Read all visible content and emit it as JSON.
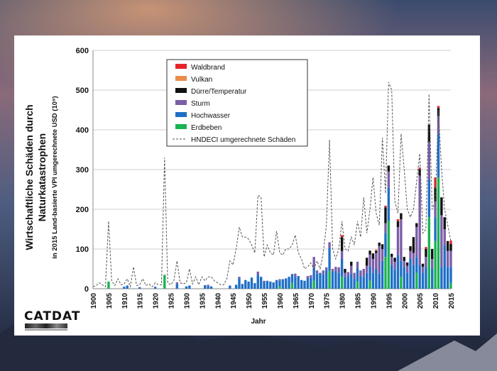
{
  "colors": {
    "waldbrand": "#e8242b",
    "vulkan": "#e98c4a",
    "duerre": "#111111",
    "sturm": "#7b5ea7",
    "hochwasser": "#1f6fc6",
    "erdbeben": "#1ab351",
    "hndeci": "#555555"
  },
  "logo": {
    "text": "CATDAT"
  },
  "chart_data": {
    "type": "bar",
    "stacked": true,
    "title": "Wirtschaftliche Schäden durch Naturkatastrophen",
    "subtitle": "in 2015 Land-basierte VPI umgerechnete USD (10⁹)",
    "xlabel": "Jahr",
    "ylabel": "",
    "ylim": [
      0,
      600
    ],
    "y_ticks": [
      "0",
      "100",
      "200",
      "300",
      "400",
      "500",
      "600"
    ],
    "x_ticks": [
      "1900",
      "1905",
      "1910",
      "1915",
      "1920",
      "1925",
      "1930",
      "1935",
      "1940",
      "1945",
      "1950",
      "1955",
      "1960",
      "1965",
      "1970",
      "1975",
      "1980",
      "1985",
      "1990",
      "1995",
      "2000",
      "2005",
      "2010",
      "2015"
    ],
    "grid": true,
    "legend_position": "top-center",
    "legend": [
      {
        "key": "waldbrand",
        "label": "Waldbrand"
      },
      {
        "key": "vulkan",
        "label": "Vulkan"
      },
      {
        "key": "duerre",
        "label": "Dürre/Temperatur"
      },
      {
        "key": "sturm",
        "label": "Sturm"
      },
      {
        "key": "hochwasser",
        "label": "Hochwasser"
      },
      {
        "key": "erdbeben",
        "label": "Erdbeben"
      },
      {
        "key": "hndeci",
        "label": "HNDECI umgerechnete Schäden"
      }
    ],
    "x_start": 1900,
    "x_end": 2015,
    "bars": [
      {
        "year": 1905,
        "erdbeben": 18
      },
      {
        "year": 1910,
        "hochwasser": 5
      },
      {
        "year": 1911,
        "hochwasser": 8
      },
      {
        "year": 1915,
        "hochwasser": 4
      },
      {
        "year": 1920,
        "hochwasser": 5
      },
      {
        "year": 1923,
        "erdbeben": 35
      },
      {
        "year": 1927,
        "hochwasser": 12,
        "sturm": 4
      },
      {
        "year": 1930,
        "hochwasser": 6
      },
      {
        "year": 1931,
        "hochwasser": 8
      },
      {
        "year": 1936,
        "hochwasser": 9
      },
      {
        "year": 1937,
        "hochwasser": 6,
        "sturm": 4
      },
      {
        "year": 1938,
        "hochwasser": 6
      },
      {
        "year": 1944,
        "hochwasser": 8
      },
      {
        "year": 1946,
        "hochwasser": 10
      },
      {
        "year": 1947,
        "hochwasser": 25,
        "sturm": 5
      },
      {
        "year": 1948,
        "hochwasser": 12
      },
      {
        "year": 1949,
        "hochwasser": 22
      },
      {
        "year": 1950,
        "hochwasser": 18
      },
      {
        "year": 1951,
        "hochwasser": 28
      },
      {
        "year": 1952,
        "hochwasser": 14
      },
      {
        "year": 1953,
        "hochwasser": 35,
        "sturm": 8
      },
      {
        "year": 1954,
        "hochwasser": 30
      },
      {
        "year": 1955,
        "hochwasser": 16,
        "sturm": 4
      },
      {
        "year": 1956,
        "hochwasser": 20
      },
      {
        "year": 1957,
        "hochwasser": 18
      },
      {
        "year": 1958,
        "hochwasser": 16
      },
      {
        "year": 1959,
        "hochwasser": 22
      },
      {
        "year": 1960,
        "hochwasser": 14,
        "erdbeben": 6,
        "sturm": 4
      },
      {
        "year": 1961,
        "hochwasser": 24
      },
      {
        "year": 1962,
        "hochwasser": 26
      },
      {
        "year": 1963,
        "hochwasser": 30
      },
      {
        "year": 1964,
        "erdbeben": 15,
        "hochwasser": 22
      },
      {
        "year": 1965,
        "hochwasser": 30,
        "sturm": 8
      },
      {
        "year": 1966,
        "hochwasser": 32
      },
      {
        "year": 1967,
        "hochwasser": 22
      },
      {
        "year": 1968,
        "hochwasser": 20
      },
      {
        "year": 1969,
        "hochwasser": 26,
        "sturm": 6
      },
      {
        "year": 1970,
        "hochwasser": 28,
        "sturm": 6
      },
      {
        "year": 1971,
        "hochwasser": 32,
        "erdbeben": 20,
        "sturm": 28
      },
      {
        "year": 1972,
        "hochwasser": 38,
        "sturm": 8
      },
      {
        "year": 1973,
        "hochwasser": 40
      },
      {
        "year": 1974,
        "hochwasser": 36,
        "sturm": 10
      },
      {
        "year": 1975,
        "hochwasser": 48,
        "sturm": 6
      },
      {
        "year": 1976,
        "erdbeben": 45,
        "hochwasser": 58,
        "sturm": 14
      },
      {
        "year": 1977,
        "hochwasser": 42,
        "sturm": 8
      },
      {
        "year": 1978,
        "hochwasser": 45,
        "sturm": 10
      },
      {
        "year": 1979,
        "hochwasser": 40,
        "sturm": 14
      },
      {
        "year": 1980,
        "erdbeben": 30,
        "hochwasser": 45,
        "sturm": 20,
        "duerre": 35,
        "waldbrand": 5
      },
      {
        "year": 1981,
        "hochwasser": 30,
        "sturm": 10,
        "duerre": 10
      },
      {
        "year": 1982,
        "hochwasser": 32,
        "sturm": 10
      },
      {
        "year": 1983,
        "hochwasser": 38,
        "sturm": 20,
        "duerre": 10
      },
      {
        "year": 1984,
        "hochwasser": 26,
        "sturm": 14
      },
      {
        "year": 1985,
        "erdbeben": 18,
        "hochwasser": 34,
        "sturm": 16
      },
      {
        "year": 1986,
        "hochwasser": 32,
        "sturm": 14
      },
      {
        "year": 1987,
        "hochwasser": 30,
        "sturm": 20
      },
      {
        "year": 1988,
        "hochwasser": 40,
        "sturm": 18,
        "duerre": 20
      },
      {
        "year": 1989,
        "erdbeben": 20,
        "hochwasser": 36,
        "sturm": 30,
        "duerre": 10
      },
      {
        "year": 1990,
        "hochwasser": 40,
        "sturm": 35,
        "duerre": 14
      },
      {
        "year": 1991,
        "hochwasser": 50,
        "sturm": 40,
        "duerre": 6,
        "vulkan": 3
      },
      {
        "year": 1992,
        "hochwasser": 38,
        "sturm": 70,
        "duerre": 8
      },
      {
        "year": 1993,
        "hochwasser": 70,
        "sturm": 30,
        "duerre": 12
      },
      {
        "year": 1994,
        "erdbeben": 80,
        "hochwasser": 60,
        "sturm": 25,
        "duerre": 40,
        "waldbrand": 4
      },
      {
        "year": 1995,
        "erdbeben": 170,
        "hochwasser": 85,
        "sturm": 40,
        "duerre": 15
      },
      {
        "year": 1996,
        "hochwasser": 60,
        "sturm": 20,
        "duerre": 8
      },
      {
        "year": 1997,
        "hochwasser": 48,
        "sturm": 20,
        "duerre": 10
      },
      {
        "year": 1998,
        "hochwasser": 85,
        "sturm": 70,
        "duerre": 15,
        "waldbrand": 5
      },
      {
        "year": 1999,
        "erdbeben": 30,
        "hochwasser": 40,
        "sturm": 105,
        "duerre": 15
      },
      {
        "year": 2000,
        "hochwasser": 55,
        "sturm": 15,
        "duerre": 10
      },
      {
        "year": 2001,
        "hochwasser": 40,
        "sturm": 18,
        "duerre": 8
      },
      {
        "year": 2002,
        "hochwasser": 75,
        "sturm": 20,
        "duerre": 12
      },
      {
        "year": 2003,
        "hochwasser": 60,
        "sturm": 30,
        "duerre": 40
      },
      {
        "year": 2004,
        "erdbeben": 40,
        "hochwasser": 40,
        "sturm": 75,
        "duerre": 10
      },
      {
        "year": 2005,
        "hochwasser": 60,
        "sturm": 225,
        "duerre": 15,
        "waldbrand": 5
      },
      {
        "year": 2006,
        "hochwasser": 40,
        "sturm": 15,
        "duerre": 8
      },
      {
        "year": 2007,
        "hochwasser": 55,
        "sturm": 25,
        "duerre": 20,
        "waldbrand": 5
      },
      {
        "year": 2008,
        "erdbeben": 180,
        "hochwasser": 95,
        "sturm": 95,
        "duerre": 43
      },
      {
        "year": 2009,
        "hochwasser": 50,
        "sturm": 25,
        "duerre": 25
      },
      {
        "year": 2010,
        "erdbeben": 120,
        "hochwasser": 60,
        "sturm": 40,
        "duerre": 35,
        "waldbrand": 25
      },
      {
        "year": 2011,
        "erdbeben": 280,
        "hochwasser": 110,
        "sturm": 45,
        "duerre": 20,
        "waldbrand": 5
      },
      {
        "year": 2012,
        "hochwasser": 55,
        "sturm": 130,
        "duerre": 45
      },
      {
        "year": 2013,
        "hochwasser": 110,
        "sturm": 40,
        "duerre": 30
      },
      {
        "year": 2014,
        "hochwasser": 55,
        "sturm": 40,
        "duerre": 25
      },
      {
        "year": 2015,
        "erdbeben": 15,
        "hochwasser": 40,
        "sturm": 40,
        "duerre": 18,
        "waldbrand": 8
      }
    ],
    "hndeci_line": [
      [
        1900,
        5
      ],
      [
        1901,
        8
      ],
      [
        1902,
        15
      ],
      [
        1903,
        10
      ],
      [
        1904,
        5
      ],
      [
        1905,
        170
      ],
      [
        1906,
        20
      ],
      [
        1907,
        8
      ],
      [
        1908,
        25
      ],
      [
        1909,
        10
      ],
      [
        1910,
        12
      ],
      [
        1911,
        25
      ],
      [
        1912,
        5
      ],
      [
        1913,
        55
      ],
      [
        1914,
        8
      ],
      [
        1915,
        10
      ],
      [
        1916,
        25
      ],
      [
        1917,
        8
      ],
      [
        1918,
        12
      ],
      [
        1919,
        5
      ],
      [
        1920,
        15
      ],
      [
        1921,
        10
      ],
      [
        1922,
        10
      ],
      [
        1923,
        330
      ],
      [
        1924,
        15
      ],
      [
        1925,
        10
      ],
      [
        1926,
        20
      ],
      [
        1927,
        70
      ],
      [
        1928,
        15
      ],
      [
        1929,
        12
      ],
      [
        1930,
        15
      ],
      [
        1931,
        50
      ],
      [
        1932,
        12
      ],
      [
        1933,
        30
      ],
      [
        1934,
        10
      ],
      [
        1935,
        30
      ],
      [
        1936,
        20
      ],
      [
        1937,
        30
      ],
      [
        1938,
        30
      ],
      [
        1939,
        20
      ],
      [
        1940,
        15
      ],
      [
        1941,
        10
      ],
      [
        1942,
        10
      ],
      [
        1943,
        25
      ],
      [
        1944,
        70
      ],
      [
        1945,
        60
      ],
      [
        1946,
        100
      ],
      [
        1947,
        155
      ],
      [
        1948,
        130
      ],
      [
        1949,
        130
      ],
      [
        1950,
        125
      ],
      [
        1951,
        110
      ],
      [
        1952,
        90
      ],
      [
        1953,
        235
      ],
      [
        1954,
        230
      ],
      [
        1955,
        80
      ],
      [
        1956,
        110
      ],
      [
        1957,
        90
      ],
      [
        1958,
        85
      ],
      [
        1959,
        145
      ],
      [
        1960,
        90
      ],
      [
        1961,
        85
      ],
      [
        1962,
        100
      ],
      [
        1963,
        100
      ],
      [
        1964,
        110
      ],
      [
        1965,
        135
      ],
      [
        1966,
        90
      ],
      [
        1967,
        75
      ],
      [
        1968,
        50
      ],
      [
        1969,
        55
      ],
      [
        1970,
        65
      ],
      [
        1971,
        50
      ],
      [
        1972,
        70
      ],
      [
        1973,
        50
      ],
      [
        1974,
        90
      ],
      [
        1975,
        160
      ],
      [
        1976,
        375
      ],
      [
        1977,
        100
      ],
      [
        1978,
        75
      ],
      [
        1979,
        100
      ],
      [
        1980,
        170
      ],
      [
        1981,
        100
      ],
      [
        1982,
        95
      ],
      [
        1983,
        130
      ],
      [
        1984,
        110
      ],
      [
        1985,
        170
      ],
      [
        1986,
        130
      ],
      [
        1987,
        230
      ],
      [
        1988,
        140
      ],
      [
        1989,
        200
      ],
      [
        1990,
        280
      ],
      [
        1991,
        190
      ],
      [
        1992,
        160
      ],
      [
        1993,
        380
      ],
      [
        1994,
        240
      ],
      [
        1995,
        520
      ],
      [
        1996,
        500
      ],
      [
        1997,
        220
      ],
      [
        1998,
        190
      ],
      [
        1999,
        390
      ],
      [
        2000,
        300
      ],
      [
        2001,
        200
      ],
      [
        2002,
        180
      ],
      [
        2003,
        200
      ],
      [
        2004,
        270
      ],
      [
        2005,
        340
      ],
      [
        2006,
        140
      ],
      [
        2007,
        150
      ],
      [
        2008,
        490
      ],
      [
        2009,
        200
      ],
      [
        2010,
        220
      ],
      [
        2011,
        450
      ],
      [
        2012,
        300
      ],
      [
        2013,
        200
      ],
      [
        2014,
        160
      ],
      [
        2015,
        120
      ]
    ]
  }
}
